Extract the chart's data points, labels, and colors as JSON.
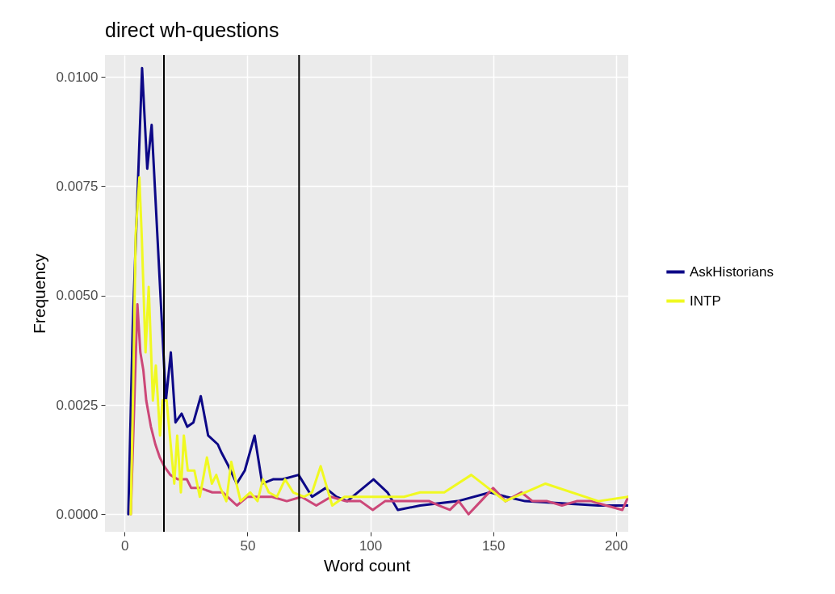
{
  "chart_data": {
    "type": "line",
    "title": "direct wh-questions",
    "xlabel": "Word count",
    "ylabel": "Frequency",
    "xlim": [
      -8,
      205
    ],
    "xticks": [
      0,
      50,
      100,
      150,
      200
    ],
    "ylim": [
      -0.0004,
      0.0105
    ],
    "yticks": [
      {
        "value": 0,
        "label": "0.0000"
      },
      {
        "value": 0.0025,
        "label": "0.0025"
      },
      {
        "value": 0.005,
        "label": "0.0050"
      },
      {
        "value": 0.0075,
        "label": "0.0075"
      },
      {
        "value": 0.01,
        "label": "0.0100"
      }
    ],
    "grid": true,
    "legend": "right",
    "line_style": "solid",
    "ref_lines": [
      {
        "axis": "x",
        "value": 16,
        "color": "#000000"
      },
      {
        "axis": "x",
        "value": 71,
        "color": "#000000"
      }
    ],
    "series": [
      {
        "name": "AskHistorians",
        "color": "#0d0887",
        "x": [
          1.5,
          3.3,
          7.1,
          9.2,
          11,
          16.8,
          18.8,
          20.7,
          23.2,
          25.5,
          28,
          31,
          34,
          37.9,
          39.5,
          42.3,
          45.6,
          48.9,
          52.9,
          56,
          60.4,
          64.3,
          70.8,
          76.3,
          81.8,
          86.2,
          90.6,
          101.3,
          107,
          111.2,
          120.3,
          135.6,
          148.8,
          155.4,
          163,
          192.8,
          205
        ],
        "values": [
          0,
          0.0043,
          0.0102,
          0.0079,
          0.0089,
          0.0026,
          0.0037,
          0.0021,
          0.0023,
          0.002,
          0.0021,
          0.0027,
          0.0018,
          0.0016,
          0.0014,
          0.0011,
          0.0007,
          0.001,
          0.0018,
          0.0007,
          0.0008,
          0.0008,
          0.0009,
          0.0004,
          0.0006,
          0.0004,
          0.0003,
          0.0008,
          0.0005,
          0.0001,
          0.0002,
          0.0003,
          0.0005,
          0.0004,
          0.0003,
          0.0002,
          0.0002
        ]
      },
      {
        "color": "#cc4778",
        "x": [
          2.5,
          5.2,
          6.4,
          7.6,
          8.8,
          10.7,
          12.5,
          14.3,
          16.1,
          18.6,
          21.6,
          25.3,
          27.1,
          30.8,
          35.7,
          40,
          45.7,
          50,
          55,
          60,
          66,
          72,
          78,
          84,
          90,
          96,
          101,
          106,
          112,
          118,
          124,
          128,
          132.4,
          136,
          140,
          145,
          150,
          155,
          161.5,
          166,
          172,
          178,
          184,
          190,
          196,
          202.6,
          205
        ],
        "values": [
          0,
          0.0048,
          0.0037,
          0.0033,
          0.0026,
          0.002,
          0.0016,
          0.0013,
          0.0011,
          0.0009,
          0.0008,
          0.0008,
          0.0006,
          0.0006,
          0.0005,
          0.0005,
          0.0002,
          0.0004,
          0.0004,
          0.0004,
          0.0003,
          0.0004,
          0.0002,
          0.0004,
          0.0003,
          0.0003,
          0.0001,
          0.0003,
          0.0003,
          0.0003,
          0.0003,
          0.0002,
          0.0001,
          0.0003,
          0,
          0.0003,
          0.0006,
          0.0003,
          0.0005,
          0.0003,
          0.0003,
          0.0002,
          0.0003,
          0.0003,
          0.0002,
          0.0001,
          0.0004
        ]
      },
      {
        "name": "INTP",
        "color": "#f0f921",
        "x": [
          2.5,
          3.5,
          4.5,
          6,
          7,
          8.5,
          9.8,
          11.5,
          12.7,
          14.4,
          15.4,
          17.1,
          20.2,
          21.4,
          22.9,
          24.1,
          25.7,
          28.4,
          30.6,
          33.5,
          35.5,
          37.3,
          39,
          41.4,
          43.4,
          47.2,
          51.1,
          54.1,
          56.3,
          58.7,
          62,
          65.3,
          68.6,
          73,
          76.3,
          79.8,
          84.5,
          89.5,
          96.1,
          107,
          113.7,
          120.3,
          130.1,
          141.1,
          154.9,
          171.3,
          192.8,
          205
        ],
        "values": [
          0,
          0.003,
          0.0064,
          0.0077,
          0.0063,
          0.0037,
          0.0052,
          0.0026,
          0.0034,
          0.0018,
          0.0026,
          0.0026,
          0.0007,
          0.0018,
          0.0005,
          0.0018,
          0.001,
          0.001,
          0.0004,
          0.0013,
          0.0007,
          0.0009,
          0.0006,
          0.0003,
          0.0012,
          0.0003,
          0.0005,
          0.0003,
          0.0008,
          0.0005,
          0.0004,
          0.0008,
          0.0005,
          0.0004,
          0.0005,
          0.0011,
          0.0002,
          0.0004,
          0.0004,
          0.0004,
          0.0004,
          0.0005,
          0.0005,
          0.0009,
          0.0003,
          0.0007,
          0.0003,
          0.0004
        ]
      }
    ]
  }
}
